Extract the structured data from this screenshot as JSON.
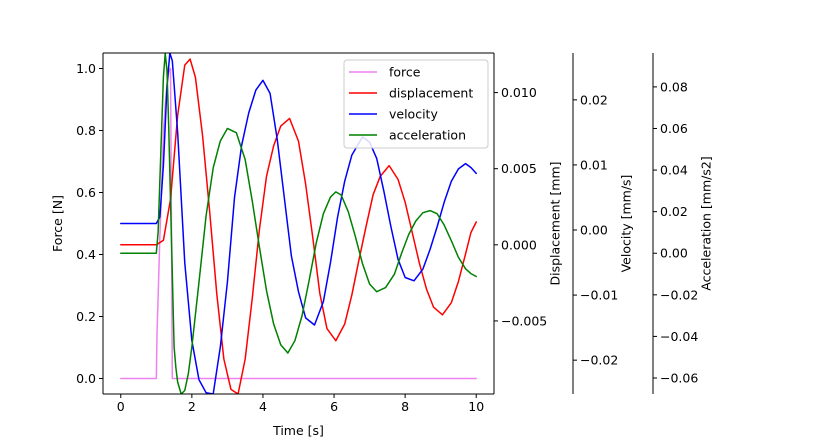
{
  "chart_data": {
    "type": "line",
    "xlabel": "Time [s]",
    "xlim": [
      -0.5,
      10.5
    ],
    "x_ticks": [
      0,
      2,
      4,
      6,
      8,
      10
    ],
    "x_tick_labels": [
      "0",
      "2",
      "4",
      "6",
      "8",
      "10"
    ],
    "axes": [
      {
        "id": "force",
        "label": "Force [N]",
        "ylim": [
          -0.05,
          1.05
        ],
        "ticks": [
          0.0,
          0.2,
          0.4,
          0.6,
          0.8,
          1.0
        ],
        "tick_labels": [
          "0.0",
          "0.2",
          "0.4",
          "0.6",
          "0.8",
          "1.0"
        ]
      },
      {
        "id": "displacement",
        "label": "Displacement [mm]",
        "ylim": [
          -0.0098,
          0.0126
        ],
        "ticks": [
          -0.005,
          0.0,
          0.005,
          0.01
        ],
        "tick_labels": [
          "−0.005",
          "0.000",
          "0.005",
          "0.010"
        ]
      },
      {
        "id": "velocity",
        "label": "Velocity [mm/s]",
        "ylim": [
          -0.0252,
          0.0272
        ],
        "ticks": [
          -0.02,
          -0.01,
          0.0,
          0.01,
          0.02
        ],
        "tick_labels": [
          "−0.02",
          "−0.01",
          "0.00",
          "0.01",
          "0.02"
        ]
      },
      {
        "id": "acceleration",
        "label": "Acceleration [mm/s2]",
        "ylim": [
          -0.0677,
          0.0963
        ],
        "ticks": [
          -0.06,
          -0.04,
          -0.02,
          0.0,
          0.02,
          0.04,
          0.06,
          0.08
        ],
        "tick_labels": [
          "−0.06",
          "−0.04",
          "−0.02",
          "0.00",
          "0.02",
          "0.04",
          "0.06",
          "0.08"
        ]
      }
    ],
    "series": [
      {
        "name": "force",
        "color": "#ee82ee",
        "axis": "force",
        "x": [
          0,
          1.0,
          1.02,
          1.05,
          1.1,
          1.15,
          1.2,
          1.25,
          1.3,
          1.35,
          1.4,
          1.45,
          1.5,
          2,
          4,
          6,
          8,
          10
        ],
        "y": [
          0,
          0,
          0.15,
          0.26,
          0.46,
          0.62,
          0.79,
          0.88,
          0.95,
          0.99,
          1.0,
          0.0,
          0,
          0,
          0,
          0,
          0,
          0
        ]
      },
      {
        "name": "displacement",
        "color": "#ff0000",
        "axis": "displacement",
        "x": [
          0,
          1.0,
          1.2,
          1.4,
          1.6,
          1.8,
          1.95,
          2.1,
          2.3,
          2.5,
          2.7,
          2.9,
          3.1,
          3.3,
          3.5,
          3.7,
          3.9,
          4.1,
          4.3,
          4.5,
          4.75,
          5.0,
          5.2,
          5.4,
          5.6,
          5.8,
          6.05,
          6.3,
          6.5,
          6.7,
          6.9,
          7.1,
          7.3,
          7.55,
          7.8,
          8.0,
          8.2,
          8.4,
          8.6,
          8.8,
          9.05,
          9.3,
          9.5,
          9.7,
          9.85,
          10.0
        ],
        "y": [
          0.0,
          0.0,
          0.0003,
          0.003,
          0.0085,
          0.0118,
          0.0122,
          0.011,
          0.0072,
          0.0022,
          -0.0032,
          -0.0075,
          -0.0095,
          -0.0098,
          -0.0075,
          -0.0035,
          0.001,
          0.0045,
          0.0065,
          0.0078,
          0.0083,
          0.0068,
          0.004,
          0.0005,
          -0.0032,
          -0.0055,
          -0.0063,
          -0.0052,
          -0.0033,
          -0.001,
          0.0012,
          0.0033,
          0.0045,
          0.0052,
          0.0043,
          0.0028,
          0.0008,
          -0.0012,
          -0.0029,
          -0.0041,
          -0.0046,
          -0.0038,
          -0.0024,
          -0.0006,
          0.0008,
          0.0015
        ]
      },
      {
        "name": "velocity",
        "color": "#0000ff",
        "axis": "velocity",
        "x": [
          0,
          1.0,
          1.1,
          1.2,
          1.3,
          1.38,
          1.45,
          1.6,
          1.8,
          2.0,
          2.2,
          2.4,
          2.6,
          2.8,
          3.0,
          3.2,
          3.4,
          3.6,
          3.8,
          4.0,
          4.2,
          4.4,
          4.6,
          4.8,
          5.0,
          5.2,
          5.45,
          5.7,
          5.9,
          6.1,
          6.3,
          6.5,
          6.8,
          7.0,
          7.2,
          7.4,
          7.6,
          7.8,
          8.0,
          8.25,
          8.5,
          8.7,
          8.9,
          9.1,
          9.3,
          9.5,
          9.7,
          9.85,
          10.0
        ],
        "y": [
          0.001,
          0.001,
          0.002,
          0.01,
          0.022,
          0.0272,
          0.026,
          0.015,
          -0.005,
          -0.017,
          -0.023,
          -0.025,
          -0.0252,
          -0.018,
          -0.008,
          0.005,
          0.013,
          0.018,
          0.0215,
          0.023,
          0.021,
          0.014,
          0.005,
          -0.004,
          -0.0095,
          -0.0135,
          -0.0146,
          -0.011,
          -0.005,
          0.002,
          0.0075,
          0.0115,
          0.0143,
          0.0135,
          0.011,
          0.006,
          0.0005,
          -0.0045,
          -0.0073,
          -0.0078,
          -0.006,
          -0.003,
          0.0005,
          0.0043,
          0.0075,
          0.0094,
          0.0102,
          0.0096,
          0.0087
        ]
      },
      {
        "name": "acceleration",
        "color": "#008000",
        "axis": "acceleration",
        "x": [
          0,
          1.0,
          1.05,
          1.1,
          1.15,
          1.2,
          1.25,
          1.3,
          1.35,
          1.4,
          1.45,
          1.5,
          1.55,
          1.6,
          1.7,
          1.8,
          1.9,
          2.0,
          2.2,
          2.4,
          2.6,
          2.8,
          3.0,
          3.25,
          3.5,
          3.7,
          3.9,
          4.1,
          4.3,
          4.5,
          4.7,
          4.9,
          5.1,
          5.3,
          5.5,
          5.7,
          5.9,
          6.05,
          6.2,
          6.4,
          6.6,
          6.8,
          7.0,
          7.2,
          7.45,
          7.7,
          7.9,
          8.1,
          8.3,
          8.5,
          8.7,
          8.9,
          9.1,
          9.3,
          9.5,
          9.7,
          9.85,
          10.0
        ],
        "y": [
          0.0,
          0.0,
          0.01,
          0.035,
          0.06,
          0.085,
          0.096,
          0.088,
          0.06,
          0.025,
          -0.01,
          -0.045,
          -0.055,
          -0.062,
          -0.0677,
          -0.066,
          -0.058,
          -0.045,
          -0.014,
          0.018,
          0.041,
          0.054,
          0.06,
          0.058,
          0.045,
          0.025,
          0.003,
          -0.018,
          -0.034,
          -0.044,
          -0.048,
          -0.042,
          -0.03,
          -0.013,
          0.005,
          0.019,
          0.027,
          0.0295,
          0.028,
          0.02,
          0.008,
          -0.005,
          -0.0148,
          -0.0185,
          -0.0165,
          -0.01,
          0.0,
          0.009,
          0.0155,
          0.0195,
          0.0205,
          0.019,
          0.0135,
          0.006,
          -0.002,
          -0.0075,
          -0.0098,
          -0.0112
        ]
      }
    ],
    "legend": {
      "placement": "top-right",
      "entries": [
        "force",
        "displacement",
        "velocity",
        "acceleration"
      ]
    },
    "grid": false
  }
}
